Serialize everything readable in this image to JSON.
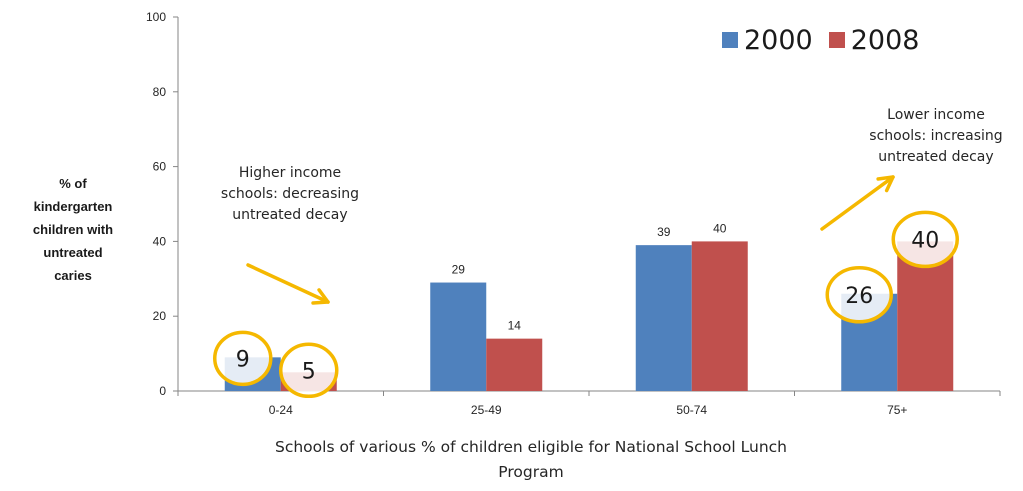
{
  "chart_data": {
    "type": "bar",
    "categories": [
      "0-24",
      "25-49",
      "50-74",
      "75+"
    ],
    "series": [
      {
        "name": "2000",
        "values": [
          9,
          29,
          39,
          26
        ],
        "color": "#4f81bd"
      },
      {
        "name": "2008",
        "values": [
          5,
          14,
          40,
          40
        ],
        "color": "#c0504d"
      }
    ],
    "data_labels": [
      [
        "9",
        "29",
        "39",
        "26"
      ],
      [
        "5",
        "14",
        "40",
        "40"
      ]
    ],
    "circled": [
      [
        true,
        false,
        false,
        true
      ],
      [
        true,
        false,
        false,
        true
      ]
    ],
    "ylim": [
      0,
      100
    ],
    "yticks": [
      0,
      20,
      40,
      60,
      80,
      100
    ],
    "ylabel_lines": [
      "% of",
      "kindergarten",
      "children with",
      "untreated",
      "caries"
    ],
    "xlabel_lines": [
      "Schools of various % of children eligible for National School Lunch",
      "Program"
    ],
    "annotations": [
      {
        "id": "left",
        "lines": [
          "Higher income",
          "schools: decreasing",
          "untreated decay"
        ]
      },
      {
        "id": "right",
        "lines": [
          "Lower income",
          "schools: increasing",
          "untreated decay"
        ]
      }
    ],
    "legend_position": "top-right",
    "grid": false,
    "highlight_color": "#f5b800"
  }
}
